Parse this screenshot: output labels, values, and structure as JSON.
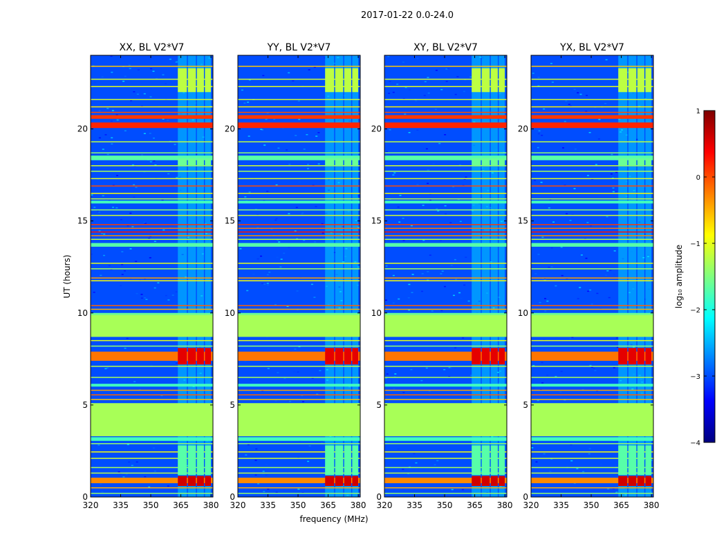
{
  "chart_data": {
    "type": "heatmap",
    "title": "2017-01-22 0.0-24.0",
    "xlabel": "frequency (MHz)",
    "ylabel": "UT (hours)",
    "xlim": [
      320,
      381
    ],
    "ylim": [
      0,
      24
    ],
    "x_ticks": [
      320,
      335,
      350,
      365,
      380
    ],
    "y_ticks": [
      0,
      5,
      10,
      15,
      20
    ],
    "colorbar": {
      "label": "log₁₀ amplitude",
      "range": [
        -4,
        1
      ],
      "ticks": [
        1,
        0,
        -1,
        -2,
        -3,
        -4
      ],
      "tick_labels": [
        "1",
        "0",
        "−1",
        "−2",
        "−3",
        "−4"
      ],
      "colormap": "jet"
    },
    "panels": [
      {
        "title": "XX, BL V2*V7"
      },
      {
        "title": "YY, BL V2*V7"
      },
      {
        "title": "XY, BL V2*V7"
      },
      {
        "title": "YX, BL V2*V7"
      }
    ],
    "background_level": -3.0,
    "interference_freq_range": [
      363,
      381
    ],
    "rfi_channel_bands_mhz": [
      [
        363.5,
        368
      ],
      [
        368.5,
        372.5
      ],
      [
        373,
        376.5
      ],
      [
        377,
        380
      ]
    ],
    "time_bands": [
      {
        "t0": 3.3,
        "t1": 5.1,
        "value": -1.3
      },
      {
        "t0": 8.7,
        "t1": 9.9,
        "value": -1.3
      },
      {
        "t0": 9.9,
        "t1": 10.0,
        "value": -1.6
      },
      {
        "t0": 0.75,
        "t1": 1.05,
        "value": -0.3
      },
      {
        "t0": 7.4,
        "t1": 7.9,
        "value": -0.2
      },
      {
        "t0": 20.05,
        "t1": 20.35,
        "value": 0.2
      },
      {
        "t0": 20.55,
        "t1": 20.75,
        "value": 0.1
      },
      {
        "t0": 18.3,
        "t1": 18.55,
        "value": -1.7
      },
      {
        "t0": 13.6,
        "t1": 13.8,
        "value": -1.7
      },
      {
        "t0": 15.95,
        "t1": 16.1,
        "value": -1.8
      },
      {
        "t0": 3.05,
        "t1": 3.25,
        "value": -1.8
      },
      {
        "t0": 6.0,
        "t1": 6.15,
        "value": -1.8
      }
    ],
    "time_lines": [
      {
        "t": 23.4,
        "value": -0.6
      },
      {
        "t": 22.7,
        "value": -1.1
      },
      {
        "t": 22.3,
        "value": -1.0
      },
      {
        "t": 21.6,
        "value": -1.1
      },
      {
        "t": 21.2,
        "value": -0.8
      },
      {
        "t": 20.9,
        "value": 0.0
      },
      {
        "t": 19.3,
        "value": -1.2
      },
      {
        "t": 18.7,
        "value": -1.4
      },
      {
        "t": 18.0,
        "value": -1.1
      },
      {
        "t": 17.7,
        "value": -1.3
      },
      {
        "t": 17.3,
        "value": -1.0
      },
      {
        "t": 16.9,
        "value": 0.0
      },
      {
        "t": 16.5,
        "value": -0.9
      },
      {
        "t": 16.2,
        "value": -1.2
      },
      {
        "t": 15.6,
        "value": -1.4
      },
      {
        "t": 15.3,
        "value": -1.1
      },
      {
        "t": 14.8,
        "value": 0.1
      },
      {
        "t": 14.6,
        "value": -0.2
      },
      {
        "t": 14.4,
        "value": 0.3
      },
      {
        "t": 14.2,
        "value": -0.3
      },
      {
        "t": 14.0,
        "value": -1.2
      },
      {
        "t": 12.7,
        "value": -1.0
      },
      {
        "t": 12.4,
        "value": -1.3
      },
      {
        "t": 11.9,
        "value": -0.4
      },
      {
        "t": 11.75,
        "value": -0.9
      },
      {
        "t": 10.4,
        "value": -0.1
      },
      {
        "t": 10.2,
        "value": -0.5
      },
      {
        "t": 8.5,
        "value": -1.0
      },
      {
        "t": 8.2,
        "value": -1.4
      },
      {
        "t": 7.1,
        "value": -1.2
      },
      {
        "t": 6.5,
        "value": -1.3
      },
      {
        "t": 5.8,
        "value": -0.4
      },
      {
        "t": 5.55,
        "value": -0.1
      },
      {
        "t": 5.3,
        "value": -0.6
      },
      {
        "t": 2.9,
        "value": -1.4
      },
      {
        "t": 2.45,
        "value": -0.9
      },
      {
        "t": 2.1,
        "value": -1.1
      },
      {
        "t": 1.6,
        "value": -1.3
      },
      {
        "t": 1.3,
        "value": -1.2
      },
      {
        "t": 0.5,
        "value": -0.5
      },
      {
        "t": 0.2,
        "value": -1.4
      }
    ],
    "rfi_bursts": [
      {
        "t0": 0.6,
        "t1": 1.15,
        "value": 0.6
      },
      {
        "t0": 7.2,
        "t1": 8.1,
        "value": 0.5
      },
      {
        "t0": 22.0,
        "t1": 23.3,
        "value": -1.2
      },
      {
        "t0": 18.0,
        "t1": 18.4,
        "value": -1.6
      },
      {
        "t0": 1.2,
        "t1": 2.8,
        "value": -1.7
      }
    ]
  }
}
